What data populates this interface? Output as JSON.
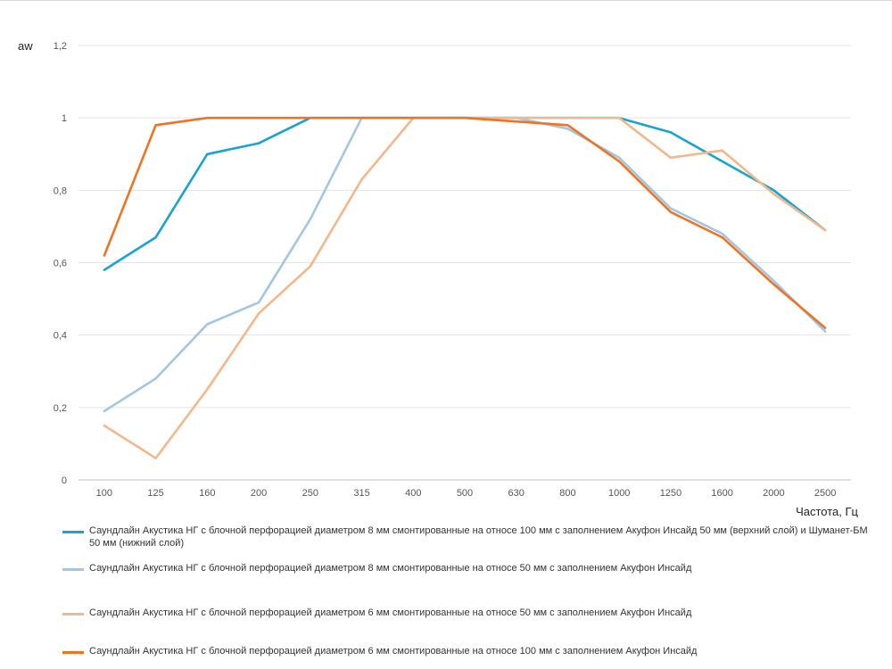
{
  "chart_data": {
    "type": "line",
    "ylabel": "aw",
    "xlabel": "Частота, Гц",
    "categories": [
      "100",
      "125",
      "160",
      "200",
      "250",
      "315",
      "400",
      "500",
      "630",
      "800",
      "1000",
      "1250",
      "1600",
      "2000",
      "2500"
    ],
    "ylim": [
      0,
      1.2
    ],
    "yticks": [
      0,
      0.2,
      0.4,
      0.6,
      0.8,
      1,
      1.2
    ],
    "ytick_labels": [
      "0",
      "0,2",
      "0,4",
      "0,6",
      "0,8",
      "1",
      "1,2"
    ],
    "grid": "horizontal",
    "legend_position": "bottom",
    "series": [
      {
        "name": "Саундлайн Акустика НГ с блочной перфорацией диаметром 8 мм смонтированные на относе 100 мм с заполнением Акуфон Инсайд 50 мм (верхний слой) и Шуманет-БМ 50 мм (нижний слой)",
        "color": "#1ba3cf",
        "values": [
          0.58,
          0.67,
          0.9,
          0.93,
          1,
          1,
          1,
          1,
          1,
          1,
          1,
          0.96,
          0.88,
          0.8,
          0.69
        ]
      },
      {
        "name": "Саундлайн Акустика НГ с блочной перфорацией диаметром 8 мм смонтированные на относе 50 мм с заполнением Акуфон Инсайд",
        "color": "#a5c6df",
        "values": [
          0.19,
          0.28,
          0.43,
          0.49,
          0.72,
          1,
          1,
          1,
          1,
          0.97,
          0.89,
          0.75,
          0.68,
          0.55,
          0.41
        ]
      },
      {
        "name": "Саундлайн Акустика НГ с блочной перфорацией диаметром 6 мм смонтированные на относе 50 мм с заполнением Акуфон Инсайд",
        "color": "#f2b88c",
        "values": [
          0.15,
          0.06,
          0.25,
          0.46,
          0.59,
          0.83,
          1,
          1,
          1,
          1,
          1,
          0.89,
          0.91,
          0.79,
          0.69
        ]
      },
      {
        "name": "Саундлайн Акустика НГ с блочной перфорацией диаметром 6 мм смонтированные на относе 100 мм с заполнением Акуфон Инсайд",
        "color": "#ed7424",
        "values": [
          0.62,
          0.98,
          1,
          1,
          1,
          1,
          1,
          1,
          0.99,
          0.98,
          0.88,
          0.74,
          0.67,
          0.54,
          0.42
        ]
      }
    ]
  }
}
